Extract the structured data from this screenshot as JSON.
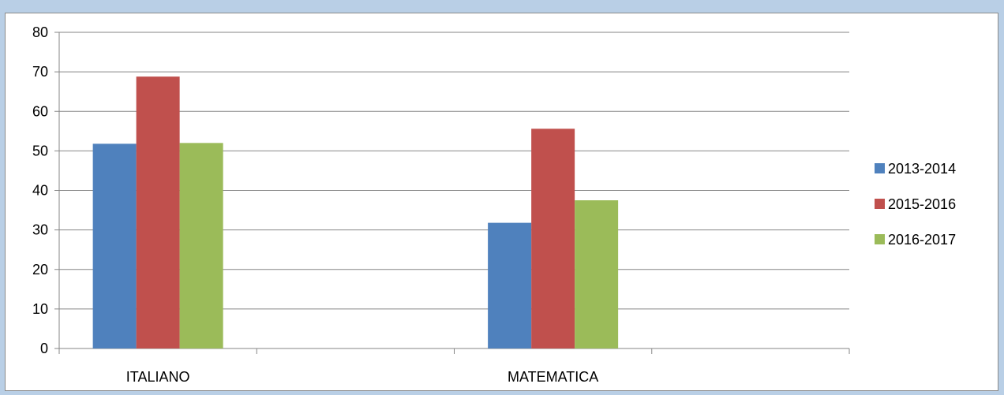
{
  "chart_data": {
    "type": "bar",
    "categories": [
      "ITALIANO",
      "MATEMATICA"
    ],
    "series": [
      {
        "name": "2013-2014",
        "values": [
          51.8,
          31.8
        ]
      },
      {
        "name": "2015-2016",
        "values": [
          68.8,
          55.6
        ]
      },
      {
        "name": "2016-2017",
        "values": [
          52.0,
          37.5
        ]
      }
    ],
    "colors": [
      "#4f81bd",
      "#c0504d",
      "#9bbb59"
    ],
    "ylim": [
      0,
      80
    ],
    "yticks": [
      0,
      10,
      20,
      30,
      40,
      50,
      60,
      70,
      80
    ],
    "grid": true,
    "legend_position": "right",
    "title": "",
    "xlabel": "",
    "ylabel": ""
  }
}
